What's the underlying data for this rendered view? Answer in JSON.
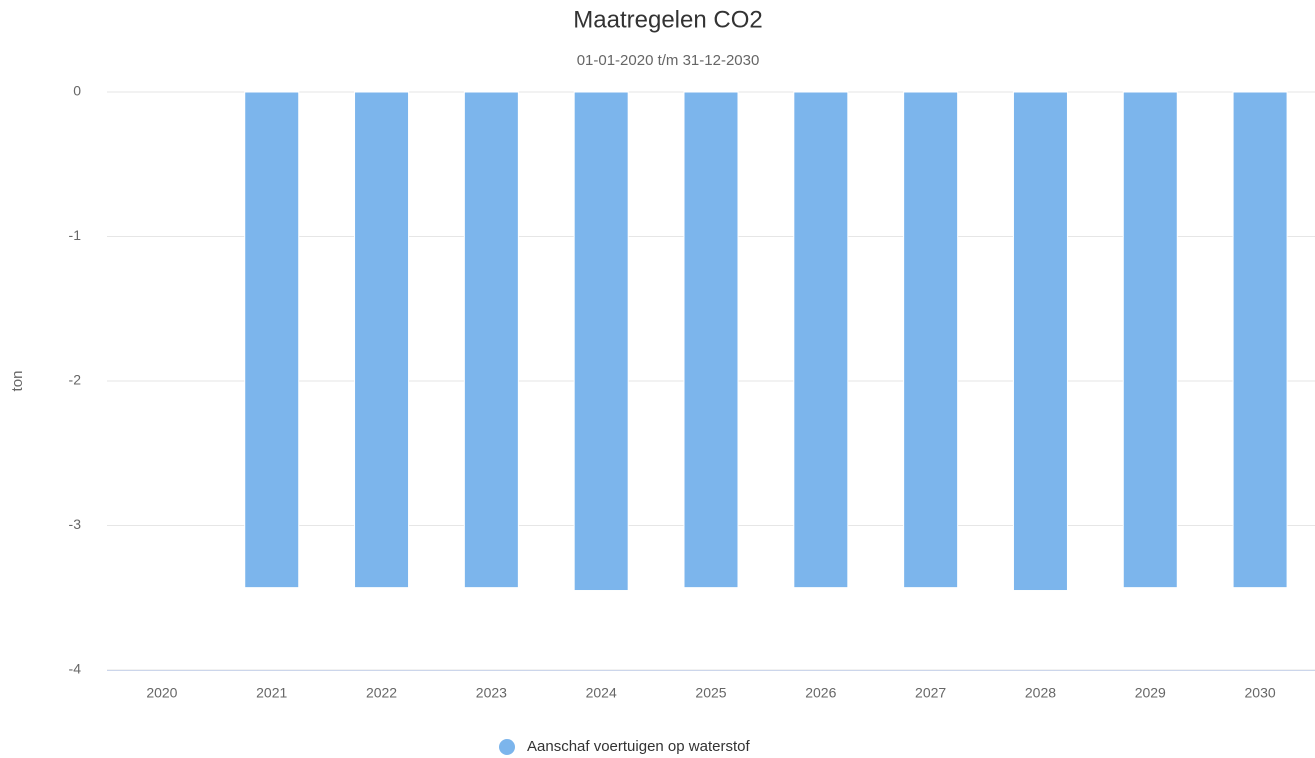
{
  "chart_data": {
    "type": "bar",
    "title": "Maatregelen CO2",
    "subtitle": "01-01-2020 t/m 31-12-2030",
    "y_axis_label": "ton",
    "categories": [
      "2020",
      "2021",
      "2022",
      "2023",
      "2024",
      "2025",
      "2026",
      "2027",
      "2028",
      "2029",
      "2030"
    ],
    "series": [
      {
        "name": "Aanschaf voertuigen op waterstof",
        "color": "#7cb5ec",
        "values": [
          0,
          -3.43,
          -3.43,
          -3.43,
          -3.45,
          -3.43,
          -3.43,
          -3.43,
          -3.45,
          -3.43,
          -3.43
        ]
      }
    ],
    "ylim": [
      -4,
      0
    ],
    "yticks": [
      -4,
      -3,
      -2,
      -1,
      0
    ],
    "grid": true,
    "legend": "bottom"
  }
}
